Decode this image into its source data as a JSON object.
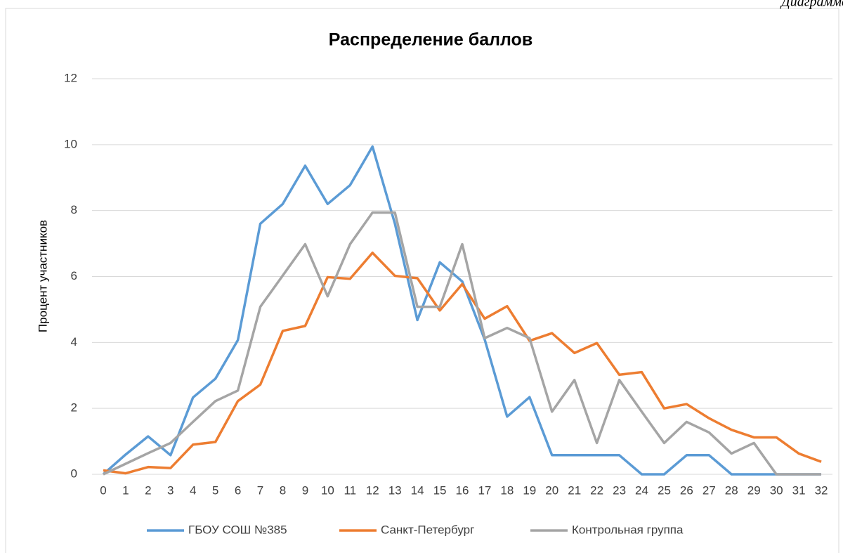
{
  "header": {
    "caption": "Диаграмма"
  },
  "chart_data": {
    "type": "line",
    "title": "Распределение баллов",
    "y_label": "Процент участников",
    "categories": [
      "0",
      "1",
      "2",
      "3",
      "4",
      "5",
      "6",
      "7",
      "8",
      "9",
      "10",
      "11",
      "12",
      "13",
      "14",
      "15",
      "16",
      "17",
      "18",
      "19",
      "20",
      "21",
      "22",
      "23",
      "24",
      "25",
      "26",
      "27",
      "28",
      "29",
      "30",
      "31",
      "32"
    ],
    "series": [
      {
        "name": "ГБОУ СОШ №385",
        "color": "#5b9bd5",
        "values": [
          0,
          0.6,
          1.15,
          0.58,
          2.33,
          2.9,
          4.07,
          7.6,
          8.2,
          9.36,
          8.2,
          8.77,
          9.94,
          7.6,
          4.68,
          6.43,
          5.85,
          4.09,
          1.75,
          2.34,
          0.58,
          0.58,
          0.58,
          0.58,
          0,
          0,
          0.58,
          0.58,
          0,
          0,
          0,
          0,
          0
        ]
      },
      {
        "name": "Санкт-Петербург",
        "color": "#ed7d31",
        "values": [
          0.12,
          0.03,
          0.22,
          0.19,
          0.9,
          0.98,
          2.22,
          2.72,
          4.35,
          4.5,
          5.98,
          5.93,
          6.72,
          6.02,
          5.95,
          4.97,
          5.77,
          4.72,
          5.1,
          4.05,
          4.28,
          3.68,
          3.98,
          3.02,
          3.1,
          2.0,
          2.13,
          1.7,
          1.35,
          1.12,
          1.12,
          0.63,
          0.38
        ]
      },
      {
        "name": "Контрольная группа",
        "color": "#a5a5a5",
        "values": [
          0,
          0.32,
          0.64,
          0.95,
          1.59,
          2.22,
          2.54,
          5.08,
          6.03,
          6.98,
          5.4,
          6.98,
          7.94,
          7.94,
          5.08,
          5.08,
          6.98,
          4.13,
          4.44,
          4.13,
          1.9,
          2.86,
          0.95,
          2.86,
          1.9,
          0.95,
          1.59,
          1.27,
          0.63,
          0.95,
          0,
          0,
          0
        ]
      }
    ],
    "ylim": [
      0,
      12
    ],
    "yticks": [
      0,
      2,
      4,
      6,
      8,
      10,
      12
    ],
    "grid": true,
    "legend": "bottom"
  }
}
